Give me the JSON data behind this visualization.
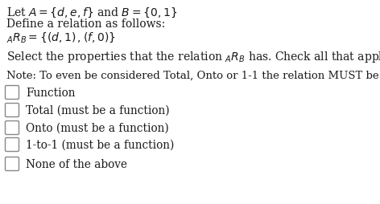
{
  "background_color": "#ffffff",
  "text_color": "#1a1a1a",
  "checkbox_color": "#ffffff",
  "checkbox_edge_color": "#888888",
  "fontsize_header": 10.0,
  "fontsize_note": 9.5,
  "fontsize_options": 9.8,
  "options": [
    "Function",
    "Total (must be a function)",
    "Onto (must be a function)",
    "1-to-1 (must be a function)",
    "None of the above"
  ]
}
